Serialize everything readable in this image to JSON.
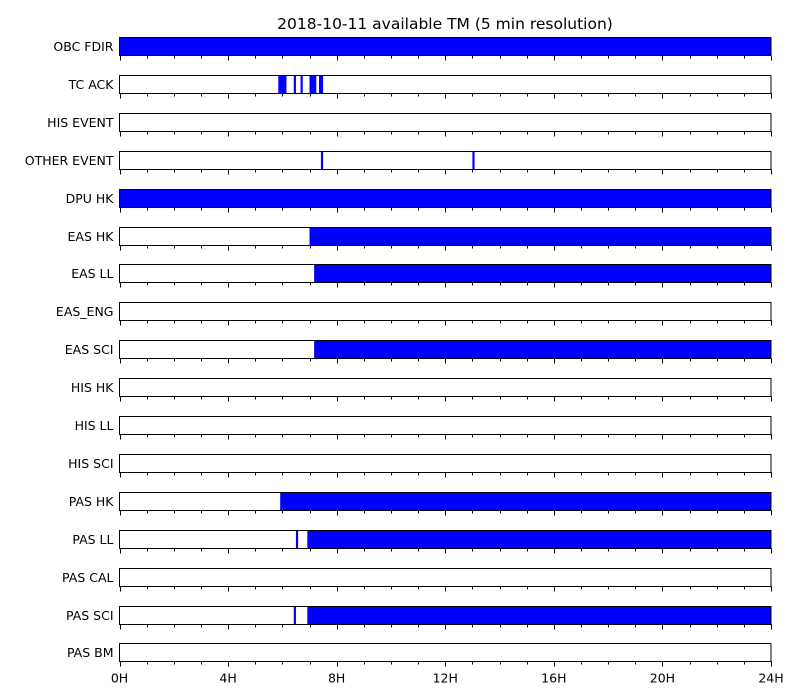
{
  "chart_data": {
    "type": "timeline",
    "title": "2018-10-11 available TM (5 min resolution)",
    "x_unit": "hours",
    "xlim": [
      0,
      24
    ],
    "xticks": [
      {
        "value": 0,
        "label": "0H"
      },
      {
        "value": 4,
        "label": "4H"
      },
      {
        "value": 8,
        "label": "8H"
      },
      {
        "value": 12,
        "label": "12H"
      },
      {
        "value": 16,
        "label": "16H"
      },
      {
        "value": 20,
        "label": "20H"
      },
      {
        "value": 24,
        "label": "24H"
      }
    ],
    "fill_color": "#0000ff",
    "rows": [
      {
        "name": "OBC FDIR",
        "intervals": [
          [
            0,
            24
          ]
        ]
      },
      {
        "name": "TC ACK",
        "intervals": [
          [
            5.85,
            6.15
          ],
          [
            6.42,
            6.5
          ],
          [
            6.67,
            6.75
          ],
          [
            7.0,
            7.25
          ],
          [
            7.35,
            7.5
          ]
        ]
      },
      {
        "name": "HIS EVENT",
        "intervals": []
      },
      {
        "name": "OTHER EVENT",
        "intervals": [
          [
            7.42,
            7.5
          ],
          [
            13.0,
            13.08
          ]
        ]
      },
      {
        "name": "DPU HK",
        "intervals": [
          [
            0,
            24
          ]
        ]
      },
      {
        "name": "EAS HK",
        "intervals": [
          [
            7.0,
            24
          ]
        ]
      },
      {
        "name": "EAS LL",
        "intervals": [
          [
            7.17,
            24
          ]
        ]
      },
      {
        "name": "EAS_ENG",
        "intervals": []
      },
      {
        "name": "EAS SCI",
        "intervals": [
          [
            7.17,
            24
          ]
        ]
      },
      {
        "name": "HIS HK",
        "intervals": []
      },
      {
        "name": "HIS LL",
        "intervals": []
      },
      {
        "name": "HIS SCI",
        "intervals": []
      },
      {
        "name": "PAS HK",
        "intervals": [
          [
            5.92,
            24
          ]
        ]
      },
      {
        "name": "PAS LL",
        "intervals": [
          [
            6.5,
            6.58
          ],
          [
            6.92,
            24
          ]
        ]
      },
      {
        "name": "PAS CAL",
        "intervals": []
      },
      {
        "name": "PAS SCI",
        "intervals": [
          [
            6.42,
            6.5
          ],
          [
            6.92,
            24
          ]
        ]
      },
      {
        "name": "PAS BM",
        "intervals": []
      }
    ]
  }
}
